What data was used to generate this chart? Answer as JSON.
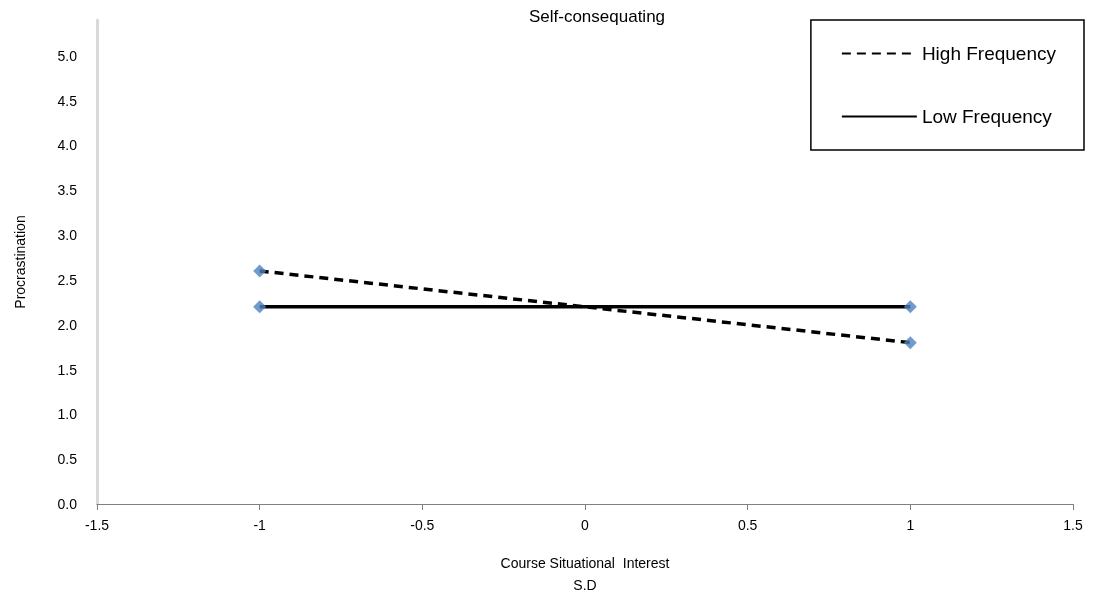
{
  "chart_data": {
    "type": "line",
    "title": "Self-consequating",
    "xlabel": "Course Situational  Interest\nS.D",
    "ylabel": "Procrastination",
    "x": [
      -1,
      1
    ],
    "series": [
      {
        "name": "High Frequency",
        "color": "#000000",
        "line_style": "dashed",
        "marker": "none",
        "values": [
          2.6,
          1.8
        ]
      },
      {
        "name": "Low Frequency",
        "color": "#000000",
        "line_style": "solid",
        "marker": "none",
        "values": [
          2.2,
          2.2
        ]
      },
      {
        "type": "scatter",
        "color": "#4f81bd",
        "marker": "diamond",
        "values": [
          2.6,
          1.8
        ]
      },
      {
        "type": "scatter",
        "color": "#4f81bd",
        "marker": "diamond",
        "values": [
          2.2,
          2.2
        ]
      }
    ],
    "xlim": [
      -1.5,
      1.5
    ],
    "xticks": [
      -1.5,
      -1,
      -0.5,
      0,
      0.5,
      1,
      1.5
    ],
    "ylim": [
      0,
      5.4
    ],
    "yticks": [
      {
        "value": 0,
        "label": "0.0"
      },
      {
        "value": 0.5,
        "label": "0.5"
      },
      {
        "value": 1,
        "label": "1.0"
      },
      {
        "value": 1.5,
        "label": "1.5"
      },
      {
        "value": 2,
        "label": "2.0"
      },
      {
        "value": 2.5,
        "label": "2.5"
      },
      {
        "value": 3,
        "label": "3.0"
      },
      {
        "value": 3.5,
        "label": "3.5"
      },
      {
        "value": 4,
        "label": "4.0"
      },
      {
        "value": 4.5,
        "label": "4.5"
      },
      {
        "value": 5,
        "label": "5.0"
      }
    ],
    "grid": false,
    "legend": "top right"
  }
}
